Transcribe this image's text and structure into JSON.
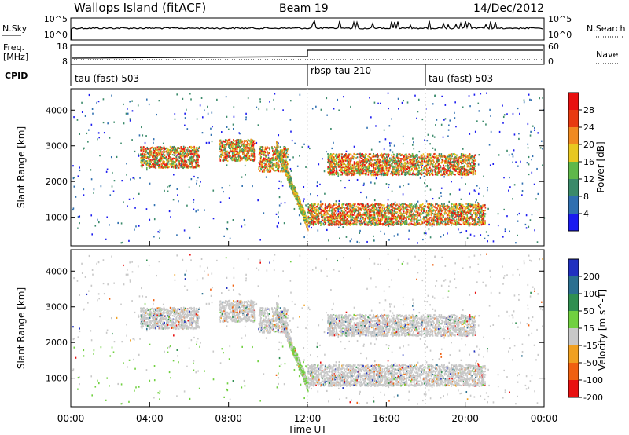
{
  "header": {
    "station": "Wallops Island (fitACF)",
    "beam": "Beam 19",
    "date": "14/Dec/2012"
  },
  "sky_panel": {
    "left_label": "N.Sky",
    "right_label": "N.Search",
    "left_ticks": [
      "10^5",
      "10^0"
    ],
    "right_ticks": [
      "10^5",
      "10^0"
    ]
  },
  "freq_panel": {
    "left_label_line1": "Freq.",
    "left_label_line2": "[MHz]",
    "right_label": "Nave",
    "left_ticks": [
      "18",
      "8"
    ],
    "right_ticks": [
      "60",
      "0"
    ]
  },
  "cpid": {
    "label": "CPID",
    "segments": [
      {
        "name": "tau (fast) 503",
        "start_hour": 0
      },
      {
        "name": "rbsp-tau 210",
        "start_hour": 12
      },
      {
        "name": "tau (fast) 503",
        "start_hour": 18
      }
    ]
  },
  "chart_data": [
    {
      "type": "heatmap",
      "title": "",
      "xlabel": "Time UT",
      "ylabel": "Slant Range [km]",
      "xlim": [
        0,
        24
      ],
      "ylim": [
        200,
        4600
      ],
      "x_tick_labels": [
        "00:00",
        "04:00",
        "08:00",
        "12:00",
        "16:00",
        "20:00",
        "00:00"
      ],
      "y_ticks": [
        "1000",
        "2000",
        "3000",
        "4000"
      ],
      "colorbar": {
        "label": "Power [dB]",
        "ticks": [
          "4",
          "8",
          "12",
          "16",
          "20",
          "24",
          "28"
        ],
        "colors": [
          "#1a1af0",
          "#2f6fb0",
          "#3a8a6a",
          "#5fb84a",
          "#e8c820",
          "#f08a20",
          "#e83a10",
          "#e81010"
        ]
      },
      "features": [
        {
          "range_start_km": 2400,
          "range_end_km": 3000,
          "start_hour": 3.5,
          "end_hour": 6.5
        },
        {
          "range_start_km": 2600,
          "range_end_km": 3200,
          "start_hour": 7.5,
          "end_hour": 9.3
        },
        {
          "range_start_km": 2300,
          "range_end_km": 3000,
          "start_hour": 9.5,
          "end_hour": 11.0
        },
        {
          "range_start_km": 800,
          "range_end_km": 1400,
          "start_hour": 12.0,
          "end_hour": 21.0
        },
        {
          "range_start_km": 2200,
          "range_end_km": 2800,
          "start_hour": 13.0,
          "end_hour": 20.5
        }
      ]
    },
    {
      "type": "heatmap",
      "title": "",
      "xlabel": "Time UT",
      "ylabel": "Slant Range [km]",
      "xlim": [
        0,
        24
      ],
      "ylim": [
        200,
        4600
      ],
      "x_tick_labels": [
        "00:00",
        "04:00",
        "08:00",
        "12:00",
        "16:00",
        "20:00",
        "00:00"
      ],
      "y_ticks": [
        "1000",
        "2000",
        "3000",
        "4000"
      ],
      "colorbar": {
        "label": "Velocity [m s^-1]",
        "ticks": [
          "200",
          "100",
          "50",
          "15",
          "-15",
          "-50",
          "-100",
          "-200"
        ],
        "colors": [
          "#2030c0",
          "#2a6f90",
          "#2f8f50",
          "#70d040",
          "#c8c8c8",
          "#f0a020",
          "#f06010",
          "#e81010"
        ]
      }
    }
  ]
}
